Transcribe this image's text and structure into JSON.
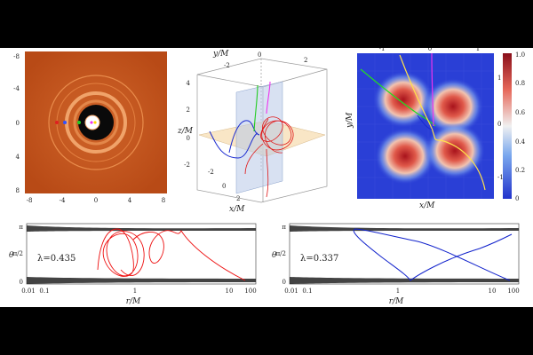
{
  "panel_a": {
    "ticks_y": [
      "-8",
      "-4",
      "0",
      "4",
      "8"
    ],
    "ticks_x": [
      "-8",
      "-4",
      "0",
      "4",
      "8"
    ],
    "colors": {
      "background": "#c4531c",
      "ring": "#f0a36a",
      "shadow": "#0a0a0a"
    },
    "markers": [
      {
        "color": "#e02020",
        "x": -5
      },
      {
        "color": "#3050ff",
        "x": -3.8
      },
      {
        "color": "#22cc22",
        "x": -1.8
      },
      {
        "color": "#ee33ee",
        "x": 0.2
      },
      {
        "color": "#ffd800",
        "x": 0.6
      }
    ]
  },
  "panel_b": {
    "ylabel": "y/M",
    "zlabel": "z/M",
    "xlabel": "x/M",
    "ticks_y": [
      "-2",
      "0",
      "2"
    ],
    "ticks_z": [
      "4",
      "2",
      "0",
      "-2"
    ],
    "ticks_x": [
      "-2",
      "0",
      "2"
    ]
  },
  "panel_c": {
    "xlabel": "x/M",
    "ylabel": "y/M",
    "ticks_x": [
      "-1",
      "0",
      "1"
    ],
    "ticks_y": [
      "1",
      "0",
      "-1"
    ],
    "colorbar_ticks": [
      "1.0",
      "0.8",
      "0.6",
      "0.4",
      "0.2",
      "0"
    ]
  },
  "panel_d": {
    "lambda_label": "λ=0.435",
    "ylabel": "θ",
    "xlabel": "r/M",
    "ticks_y": [
      "π",
      "π/2",
      "0"
    ],
    "ticks_x": [
      "0.01",
      "0.1",
      "1",
      "10",
      "100"
    ],
    "curve_color": "#ee1111"
  },
  "panel_e": {
    "lambda_label": "λ=0.337",
    "ylabel": "θ",
    "xlabel": "r/M",
    "ticks_y": [
      "π",
      "π/2",
      "0"
    ],
    "ticks_x": [
      "0.01",
      "0.1",
      "1",
      "10",
      "100"
    ],
    "curve_color": "#1122cc"
  }
}
